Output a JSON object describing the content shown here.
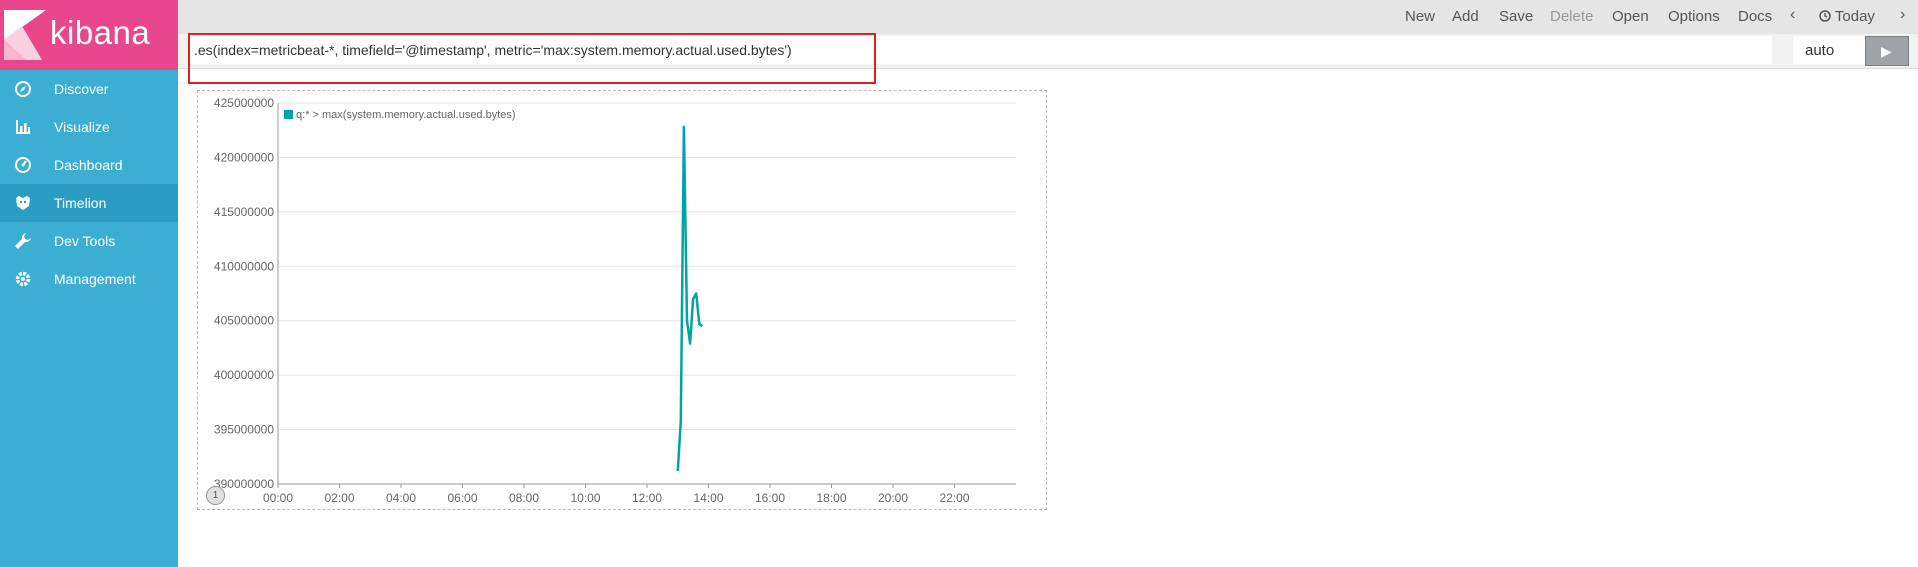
{
  "app": {
    "logo_text": "kibana"
  },
  "sidebar": {
    "items": [
      {
        "label": "Discover",
        "icon": "compass-icon",
        "active": false
      },
      {
        "label": "Visualize",
        "icon": "bar-chart-icon",
        "active": false
      },
      {
        "label": "Dashboard",
        "icon": "dashboard-gauge-icon",
        "active": false
      },
      {
        "label": "Timelion",
        "icon": "timelion-icon",
        "active": true
      },
      {
        "label": "Dev Tools",
        "icon": "wrench-icon",
        "active": false
      },
      {
        "label": "Management",
        "icon": "gear-icon",
        "active": false
      }
    ]
  },
  "toolbar": {
    "new": "New",
    "add": "Add",
    "save": "Save",
    "delete": "Delete",
    "open": "Open",
    "options": "Options",
    "docs": "Docs",
    "time_range": "Today"
  },
  "query": {
    "expression": ".es(index=metricbeat-*, timefield='@timestamp', metric='max:system.memory.actual.used.bytes')",
    "interval": "auto"
  },
  "panel": {
    "badge": "1"
  },
  "colors": {
    "series": "#01a4a4",
    "sidebar": "#3caed2",
    "logo": "#e8488b",
    "highlight": "#e02020"
  },
  "chart_data": {
    "type": "line",
    "legend": [
      "q:* > max(system.memory.actual.used.bytes)"
    ],
    "ylim": [
      390000000,
      425000000
    ],
    "y_ticks": [
      "390000000",
      "395000000",
      "400000000",
      "405000000",
      "410000000",
      "415000000",
      "420000000",
      "425000000"
    ],
    "x_ticks": [
      "00:00",
      "02:00",
      "04:00",
      "06:00",
      "08:00",
      "10:00",
      "12:00",
      "14:00",
      "16:00",
      "18:00",
      "20:00",
      "22:00"
    ],
    "xlim_hours": [
      0,
      24
    ],
    "grid": true,
    "legend_position": "top-left",
    "series": [
      {
        "name": "q:* > max(system.memory.actual.used.bytes)",
        "color": "#01a4a4",
        "x_hours": [
          13.0,
          13.1,
          13.2,
          13.3,
          13.4,
          13.5,
          13.6,
          13.7,
          13.8
        ],
        "values": [
          391200000,
          395800000,
          422800000,
          405000000,
          402900000,
          407000000,
          407500000,
          404700000,
          404500000
        ]
      }
    ]
  }
}
